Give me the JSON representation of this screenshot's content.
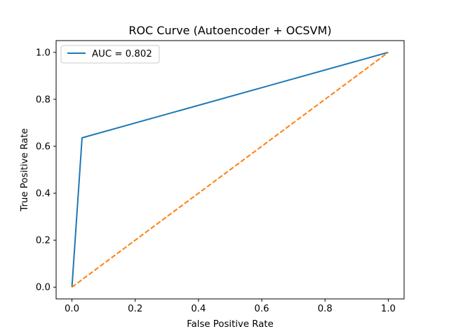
{
  "chart_data": {
    "type": "line",
    "title": "ROC Curve (Autoencoder + OCSVM)",
    "xlabel": "False Positive Rate",
    "ylabel": "True Positive Rate",
    "xlim": [
      -0.05,
      1.05
    ],
    "ylim": [
      -0.05,
      1.05
    ],
    "xticks": [
      0.0,
      0.2,
      0.4,
      0.6,
      0.8,
      1.0
    ],
    "xtick_labels": [
      "0.0",
      "0.2",
      "0.4",
      "0.6",
      "0.8",
      "1.0"
    ],
    "yticks": [
      0.0,
      0.2,
      0.4,
      0.6,
      0.8,
      1.0
    ],
    "ytick_labels": [
      "0.0",
      "0.2",
      "0.4",
      "0.6",
      "0.8",
      "1.0"
    ],
    "grid": false,
    "legend_position": "upper-left",
    "series": [
      {
        "name": "AUC = 0.802",
        "style": "solid",
        "color": "#1f77b4",
        "x": [
          0.0,
          0.032,
          1.0
        ],
        "y": [
          0.0,
          0.636,
          1.0
        ]
      },
      {
        "style": "dashed",
        "color": "#ff7f0e",
        "x": [
          0.0,
          1.0
        ],
        "y": [
          0.0,
          1.0
        ]
      }
    ]
  }
}
